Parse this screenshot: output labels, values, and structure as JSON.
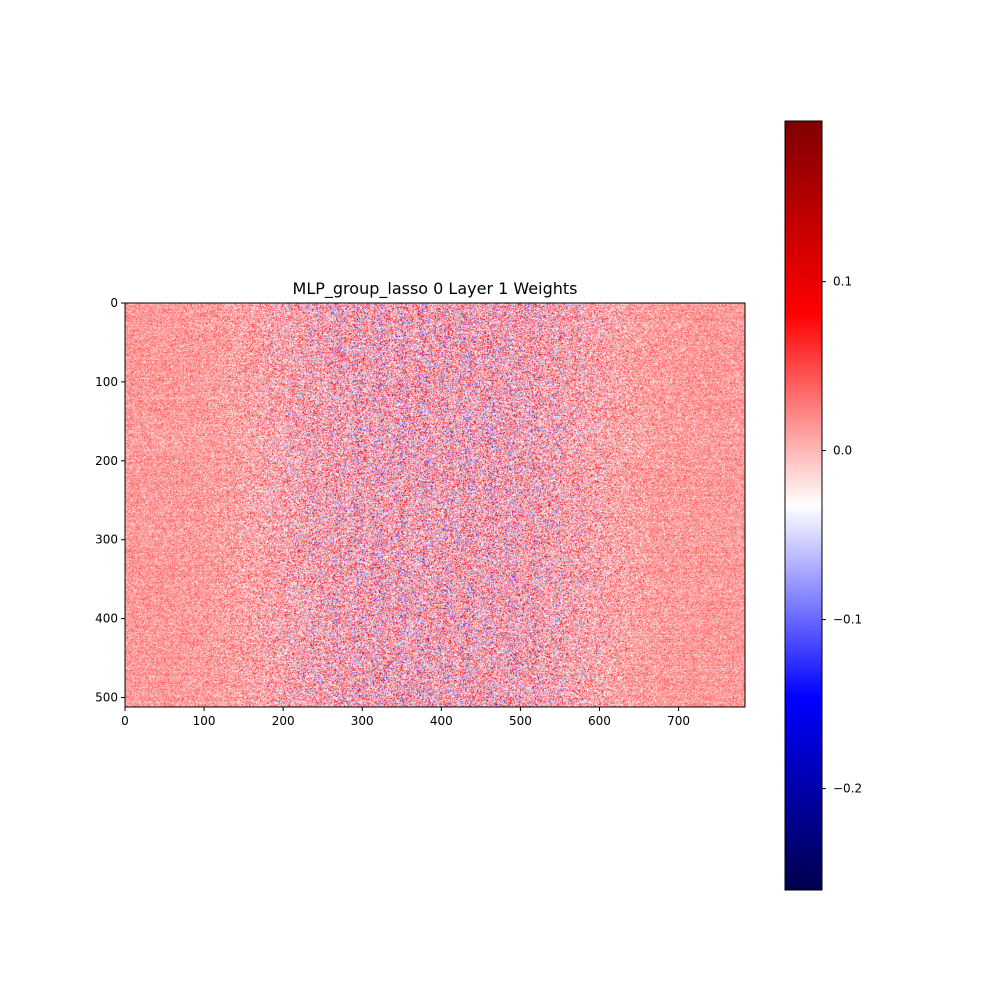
{
  "chart_data": {
    "type": "heatmap",
    "title": "MLP_group_lasso 0 Layer 1 Weights",
    "xlabel": "",
    "ylabel": "",
    "n_cols": 784,
    "n_rows": 512,
    "xlim": [
      0,
      784
    ],
    "ylim": [
      512,
      0
    ],
    "x_ticks": [
      0,
      100,
      200,
      300,
      400,
      500,
      600,
      700
    ],
    "y_ticks": [
      0,
      100,
      200,
      300,
      400,
      500
    ],
    "colormap": "seismic",
    "colormap_stops": [
      "#00004c",
      "#0000ff",
      "#ffffff",
      "#ff0000",
      "#7f0000"
    ],
    "value_range": [
      -0.26,
      0.195
    ],
    "colorbar_ticks": [
      0.1,
      0.0,
      -0.1,
      -0.2
    ],
    "colorbar_tick_labels": [
      "0.1",
      "0.0",
      "−0.1",
      "−0.2"
    ],
    "grid": false
  }
}
